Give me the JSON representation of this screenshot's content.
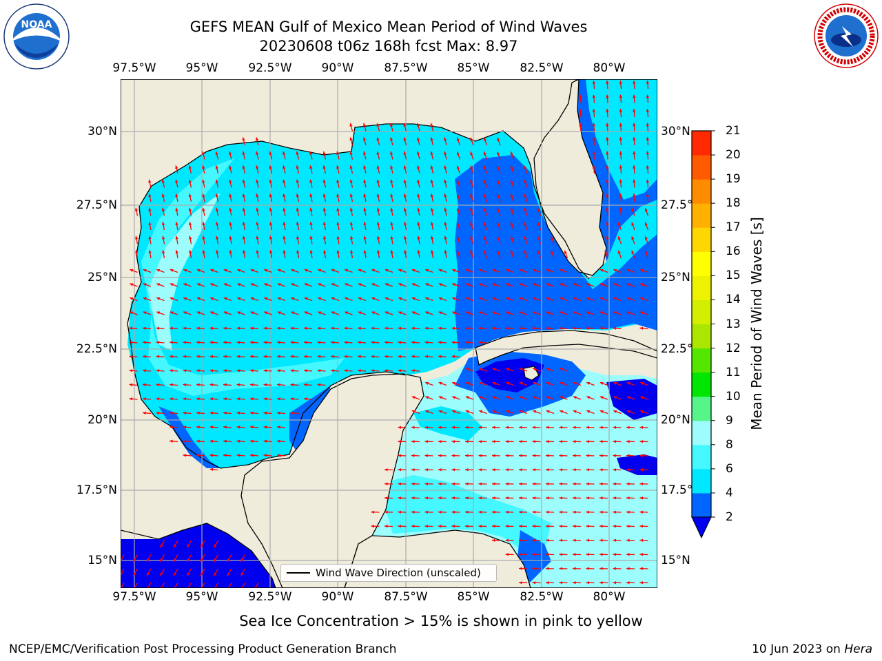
{
  "title": {
    "line1": "GEFS MEAN Gulf of Mexico Mean Period of Wind Waves",
    "line2": "20230608 t06z 168h fcst   Max: 8.97"
  },
  "logos": {
    "left": {
      "text": "NOAA",
      "ring_text": "NATIONAL OCEANIC AND ATMOSPHERIC ADMINISTRATION · U.S. DEPARTMENT OF COMMERCE"
    },
    "right": {
      "ring_text": "NATIONAL WEATHER SERVICE"
    }
  },
  "map": {
    "lon_labels": [
      "97.5°W",
      "95°W",
      "92.5°W",
      "90°W",
      "87.5°W",
      "85°W",
      "82.5°W",
      "80°W"
    ],
    "lat_labels": [
      "30°N",
      "27.5°N",
      "25°N",
      "22.5°N",
      "20°N",
      "17.5°N",
      "15°N"
    ],
    "land_color": "#efecdc",
    "ocean_colors": {
      "2-4": "#0066ff",
      "4-6": "#00e8ff",
      "6-8": "#45f8ff",
      "8-9": "#9dfcfc",
      "sea_ice_region": "#0000ee"
    },
    "arrow_color": "#ff0000",
    "legend_label": "Wind Wave Direction (unscaled)"
  },
  "colorbar": {
    "label": "Mean Period of Wind Waves [s]",
    "ticks": [
      "2",
      "4",
      "6",
      "8",
      "9",
      "10",
      "11",
      "12",
      "13",
      "14",
      "15",
      "16",
      "17",
      "18",
      "19",
      "20",
      "21"
    ],
    "colors": [
      "#0066ff",
      "#00e8ff",
      "#45f8ff",
      "#9dfcfc",
      "#55f58a",
      "#00e600",
      "#55e600",
      "#aae600",
      "#d4ee00",
      "#eef200",
      "#ffff00",
      "#ffd700",
      "#ffb000",
      "#ff8c00",
      "#ff5a00",
      "#ff2a00",
      "#ff0000"
    ],
    "under_color": "#0000ee"
  },
  "footer": {
    "caption": "Sea Ice Concentration > 15% is shown in pink to yellow",
    "credit": "NCEP/EMC/Verification Post Processing Product Generation Branch",
    "date": "10 Jun 2023 on ",
    "machine": "Hera"
  }
}
